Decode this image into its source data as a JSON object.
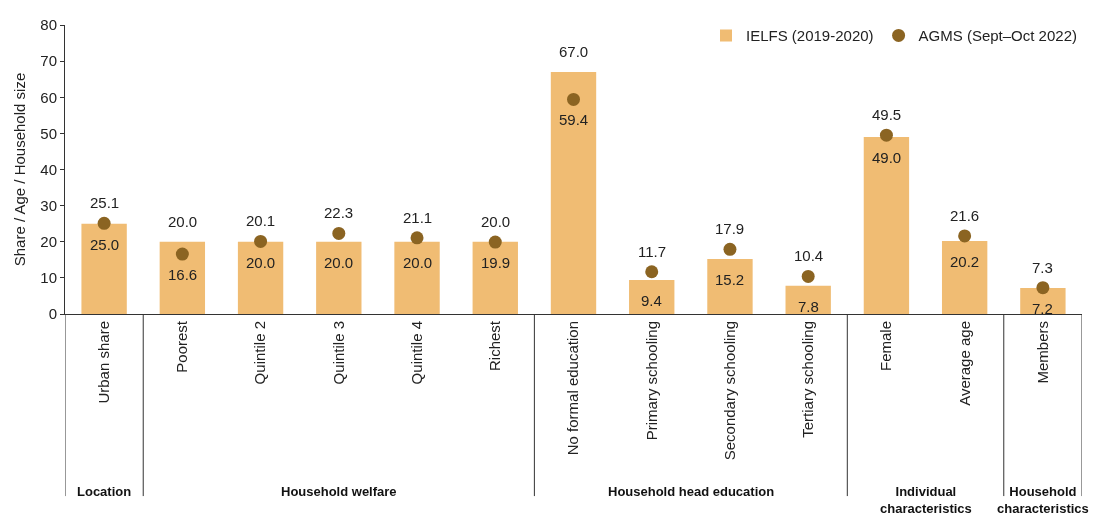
{
  "chart_data": {
    "type": "bar",
    "ylabel": "Share / Age / Household size",
    "categories": [
      "Urban share",
      "Poorest",
      "Quintile 2",
      "Quintile 3",
      "Quintile 4",
      "Richest",
      "No formal education",
      "Primary schooling",
      "Secondary schooling",
      "Tertiary schooling",
      "Female",
      "Average age",
      "Members"
    ],
    "series": [
      {
        "name": "IELFS (2019-2020)",
        "type": "bar",
        "color": "#f0bc73",
        "values": [
          25.0,
          20.0,
          20.0,
          20.0,
          20.0,
          20.0,
          67.0,
          9.4,
          15.2,
          7.8,
          49.0,
          20.2,
          7.2
        ],
        "value_labels": [
          "25.0",
          "20.0",
          "20.0",
          "20.0",
          "20.0",
          "20.0",
          "67.0",
          "9.4",
          "15.2",
          "7.8",
          "49.0",
          "20.2",
          "7.2"
        ]
      },
      {
        "name": "AGMS (Sept–Oct 2022)",
        "type": "scatter",
        "color": "#8b6422",
        "marker": "circle",
        "values": [
          25.1,
          16.6,
          20.1,
          22.3,
          21.1,
          19.9,
          59.4,
          11.7,
          17.9,
          10.4,
          49.5,
          21.6,
          7.3
        ],
        "value_labels": [
          "25.1",
          "16.6",
          "20.1",
          "22.3",
          "21.1",
          "19.9",
          "59.4",
          "11.7",
          "17.9",
          "10.4",
          "49.5",
          "21.6",
          "7.3"
        ]
      }
    ],
    "ylim": [
      0,
      80
    ],
    "yticks": [
      0,
      10,
      20,
      30,
      40,
      50,
      60,
      70,
      80
    ],
    "grid": false,
    "legend": "top right",
    "annotations": [
      "Location",
      "Household welfare",
      "Household head education",
      "Individual characteristics",
      "Household characteristics"
    ]
  }
}
